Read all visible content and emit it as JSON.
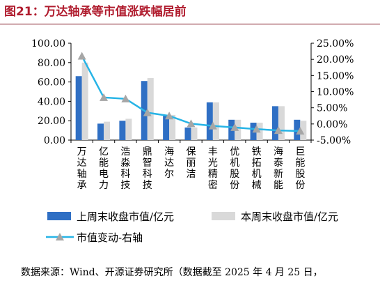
{
  "header": {
    "title": "图21：万达轴承等市值涨跌幅居前"
  },
  "source": {
    "text": "数据来源：Wind、开源证券研究所（数据截至 2025 年 4 月 25 日，"
  },
  "colors": {
    "this_week": "#2f6fc4",
    "last_week": "#d9d9d9",
    "change_line": "#27b4e6",
    "change_marker": "#a6a6a6"
  },
  "chart_data": {
    "type": "bar",
    "categories": [
      "万达轴承",
      "亿能电力",
      "浩淼科技",
      "鼎智科技",
      "海达尔",
      "保丽洁",
      "丰光精密",
      "优机股份",
      "铁拓机械",
      "海泰新能",
      "巨能股份"
    ],
    "series": [
      {
        "name": "上周末收盘市值/亿元",
        "kind": "bar",
        "axis": "left",
        "values": [
          66,
          17,
          20,
          61,
          25,
          13,
          39,
          21,
          18,
          35,
          21
        ]
      },
      {
        "name": "本周末收盘市值/亿元",
        "kind": "bar",
        "axis": "left",
        "values": [
          80,
          19,
          22,
          64,
          26,
          13,
          39,
          21,
          18,
          35,
          20
        ]
      },
      {
        "name": "市值变动-右轴",
        "kind": "line",
        "axis": "right",
        "values": [
          21.0,
          8.2,
          7.8,
          3.5,
          2.5,
          0.1,
          -0.6,
          -1.1,
          -1.6,
          -2.0,
          -2.2
        ]
      }
    ],
    "y_left": {
      "range": [
        0,
        100
      ],
      "ticks": [
        "0.00",
        "20.00",
        "40.00",
        "60.00",
        "80.00",
        "100.00"
      ]
    },
    "y_right": {
      "range": [
        -5,
        25
      ],
      "ticks": [
        "-5.00%",
        "0.00%",
        "5.00%",
        "10.00%",
        "15.00%",
        "20.00%",
        "25.00%"
      ]
    },
    "legend": {
      "placement": "bottom"
    },
    "grid": false
  }
}
